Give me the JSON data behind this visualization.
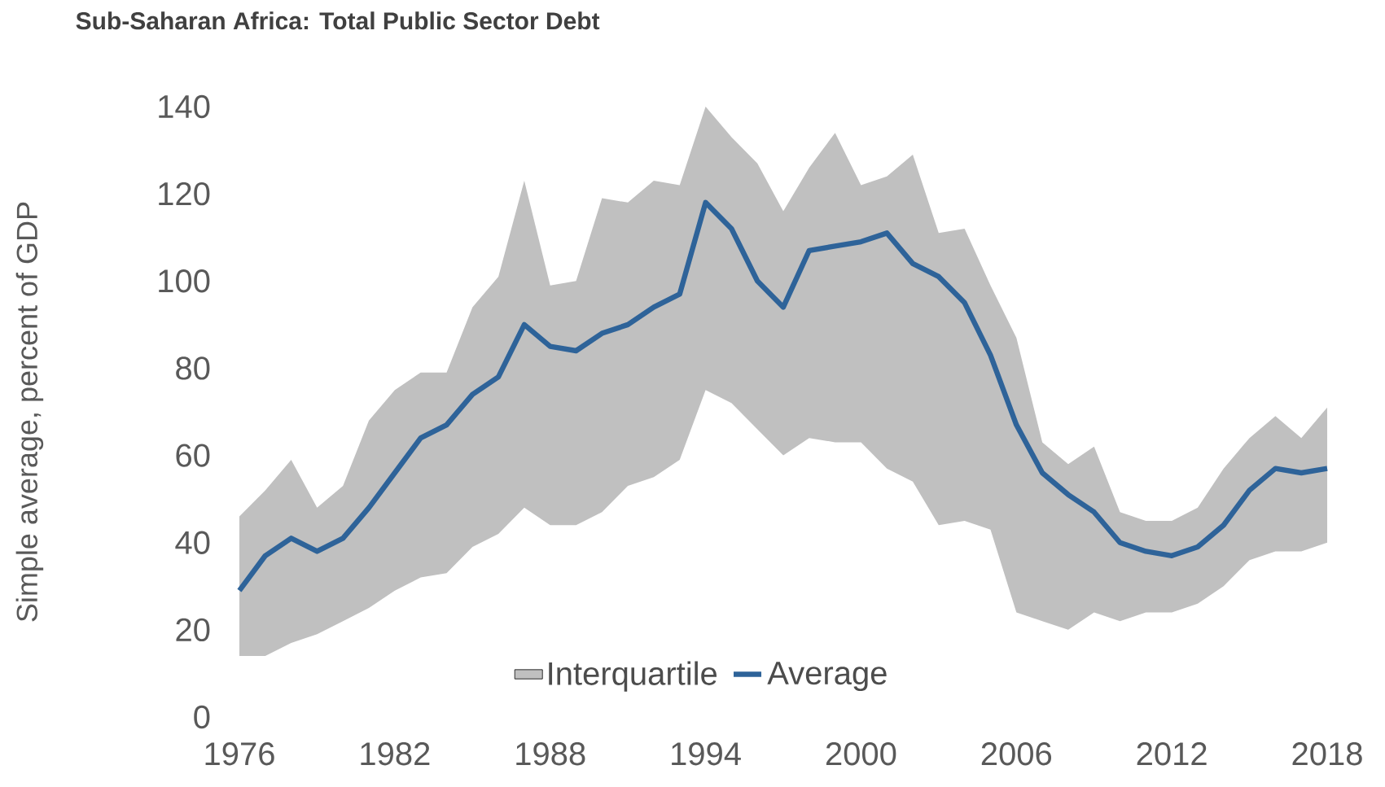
{
  "chart_data": {
    "type": "line",
    "title": "Sub-Saharan Africa: Total Public Sector Debt",
    "ylabel": "Simple average, percent of GDP",
    "annotations": [
      "Interquartile"
    ],
    "x": [
      1976,
      1977,
      1978,
      1979,
      1980,
      1981,
      1982,
      1983,
      1984,
      1985,
      1986,
      1987,
      1988,
      1989,
      1990,
      1991,
      1992,
      1993,
      1994,
      1995,
      1996,
      1997,
      1998,
      1999,
      2000,
      2001,
      2002,
      2003,
      2004,
      2005,
      2006,
      2007,
      2008,
      2009,
      2010,
      2011,
      2012,
      2013,
      2014,
      2015,
      2016,
      2017,
      2018
    ],
    "series": [
      {
        "name": "Average",
        "color": "#2e6399",
        "values": [
          29,
          37,
          41,
          38,
          41,
          48,
          56,
          64,
          67,
          74,
          78,
          90,
          85,
          84,
          88,
          90,
          94,
          97,
          118,
          112,
          100,
          94,
          107,
          108,
          109,
          111,
          104,
          101,
          95,
          83,
          67,
          56,
          51,
          47,
          40,
          38,
          37,
          39,
          44,
          52,
          57,
          56,
          57
        ],
        "upper": [
          46,
          52,
          59,
          48,
          53,
          68,
          75,
          79,
          79,
          94,
          101,
          123,
          99,
          100,
          119,
          118,
          123,
          122,
          140,
          133,
          127,
          116,
          126,
          134,
          122,
          124,
          129,
          111,
          112,
          99,
          87,
          63,
          58,
          62,
          47,
          45,
          45,
          48,
          57,
          64,
          69,
          64,
          71
        ],
        "lower": [
          14,
          14,
          17,
          19,
          22,
          25,
          29,
          32,
          33,
          39,
          42,
          48,
          44,
          44,
          47,
          53,
          55,
          59,
          75,
          72,
          66,
          60,
          64,
          63,
          63,
          57,
          54,
          44,
          45,
          43,
          24,
          22,
          20,
          24,
          22,
          24,
          24,
          26,
          30,
          36,
          38,
          38,
          40
        ]
      }
    ],
    "xlim": [
      1976,
      2018
    ],
    "xticks": [
      1976,
      1982,
      1988,
      1994,
      2000,
      2006,
      2012,
      2018
    ],
    "ylim": [
      0,
      140
    ],
    "yticks": [
      0,
      20,
      40,
      60,
      80,
      100,
      120,
      140
    ],
    "grid": false,
    "legend": "bottom",
    "marker": "none",
    "line_style": "solid"
  }
}
